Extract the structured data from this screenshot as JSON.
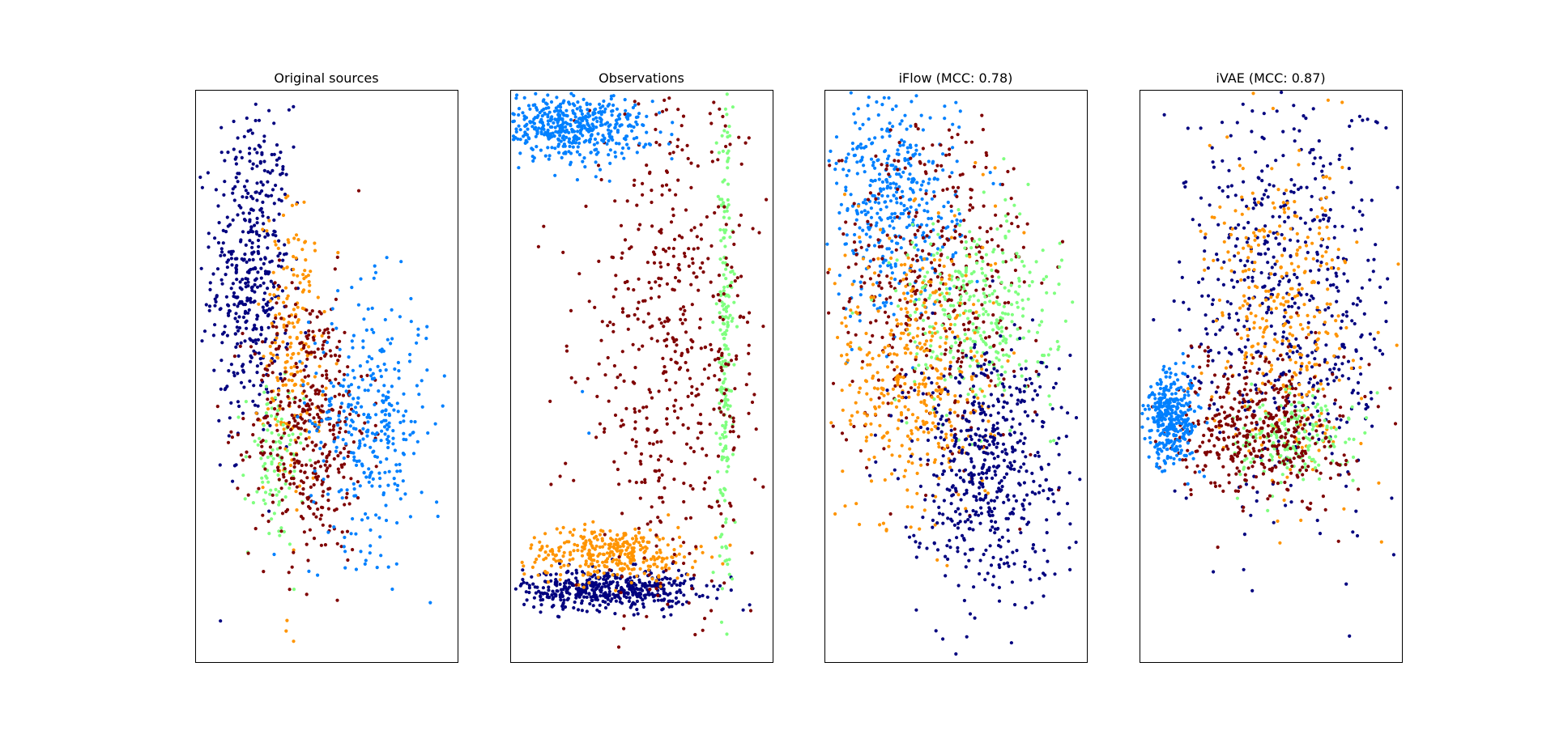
{
  "chart_data": [
    {
      "type": "scatter",
      "title": "Original sources",
      "xlabel": "",
      "ylabel": "",
      "xticks": "hidden",
      "yticks": "hidden",
      "grid": false,
      "legend": "none",
      "xlim": [
        -4,
        4
      ],
      "ylim": [
        -6,
        5
      ],
      "colormap": "jet",
      "series": [
        {
          "color": "#00007f",
          "n": 450,
          "x": [
            -2.3,
            0.6
          ],
          "y": [
            1.5,
            1.6
          ],
          "outliers": [
            [
              -1.75,
              4.6
            ],
            [
              -2.5,
              4.1
            ],
            [
              -3.0,
              3.8
            ],
            [
              -1.0,
              3.9
            ],
            [
              -3.2,
              -0.2
            ]
          ]
        },
        {
          "color": "#ff9400",
          "n": 200,
          "x": [
            -1.0,
            0.45
          ],
          "y": [
            0.0,
            1.4
          ],
          "outliers": [
            [
              -1.0,
              -5.6
            ],
            [
              -1.2,
              -5.2
            ]
          ]
        },
        {
          "color": "#7fff7f",
          "n": 100,
          "x": [
            -1.6,
            0.45
          ],
          "y": [
            -2.2,
            0.8
          ],
          "outliers": []
        },
        {
          "color": "#7f0000",
          "n": 420,
          "x": [
            -0.5,
            0.9
          ],
          "y": [
            -1.4,
            1.3
          ],
          "outliers": [
            [
              -0.6,
              -4.7
            ]
          ]
        },
        {
          "color": "#0080ff",
          "n": 330,
          "x": [
            1.3,
            0.9
          ],
          "y": [
            -1.4,
            1.2
          ],
          "outliers": [
            [
              3.6,
              -0.5
            ],
            [
              3.4,
              -3.2
            ],
            [
              2.8,
              0.4
            ],
            [
              1.4,
              0.8
            ]
          ]
        }
      ]
    },
    {
      "type": "scatter",
      "title": "Observations",
      "xlabel": "",
      "ylabel": "",
      "xticks": "hidden",
      "yticks": "hidden",
      "grid": false,
      "legend": "none",
      "xlim": [
        -4,
        4
      ],
      "ylim": [
        -6,
        5
      ],
      "colormap": "jet",
      "series": [
        {
          "color": "#00007f",
          "n": 480,
          "x": [
            -1.0,
            1.3
          ],
          "y": [
            -4.6,
            0.2
          ],
          "outliers": [
            [
              3.1,
              -5.0
            ],
            [
              3.3,
              -4.9
            ]
          ]
        },
        {
          "color": "#ff9400",
          "n": 330,
          "x": [
            -0.9,
            1.3
          ],
          "y": [
            -3.9,
            0.25
          ],
          "outliers": []
        },
        {
          "color": "#7fff7f",
          "n": 220,
          "x": [
            2.55,
            0.12
          ],
          "y": [
            0.0,
            2.5
          ],
          "outliers": []
        },
        {
          "color": "#7f0000",
          "n": 540,
          "x": [
            1.0,
            1.5
          ],
          "y": [
            0.0,
            2.5
          ],
          "outliers": []
        },
        {
          "color": "#0080ff",
          "n": 500,
          "x": [
            -2.2,
            1.2
          ],
          "y": [
            4.3,
            0.3
          ],
          "outliers": [
            [
              -1.6,
              -1.6
            ],
            [
              -1.8,
              -0.8
            ]
          ]
        }
      ]
    },
    {
      "type": "scatter",
      "title": "iFlow (MCC: 0.78)",
      "xlabel": "",
      "ylabel": "",
      "xticks": "hidden",
      "yticks": "hidden",
      "grid": false,
      "legend": "none",
      "xlim": [
        -4,
        4
      ],
      "ylim": [
        -6,
        5
      ],
      "colormap": "jet",
      "series": [
        {
          "color": "#0080ff",
          "n": 420,
          "x": [
            -1.9,
            1.0
          ],
          "y": [
            2.8,
            1.1
          ],
          "outliers": []
        },
        {
          "color": "#7f0000",
          "n": 430,
          "x": [
            -0.6,
            1.6
          ],
          "y": [
            1.3,
            1.6
          ],
          "outliers": []
        },
        {
          "color": "#7fff7f",
          "n": 330,
          "x": [
            0.6,
            1.2
          ],
          "y": [
            0.7,
            0.9
          ],
          "outliers": []
        },
        {
          "color": "#ff9400",
          "n": 410,
          "x": [
            -1.2,
            1.2
          ],
          "y": [
            -0.5,
            1.5
          ],
          "outliers": [
            [
              0.6,
              3.6
            ],
            [
              1.2,
              3.5
            ]
          ]
        },
        {
          "color": "#00007f",
          "n": 560,
          "x": [
            0.9,
            1.2
          ],
          "y": [
            -2.2,
            1.2
          ],
          "outliers": [
            [
              -0.6,
              -5.4
            ],
            [
              -1.2,
              -5.0
            ]
          ]
        }
      ]
    },
    {
      "type": "scatter",
      "title": "iVAE (MCC: 0.87)",
      "xlabel": "",
      "ylabel": "",
      "xticks": "hidden",
      "yticks": "hidden",
      "grid": false,
      "legend": "none",
      "xlim": [
        -4,
        4
      ],
      "ylim": [
        -6,
        5
      ],
      "colormap": "jet",
      "series": [
        {
          "color": "#00007f",
          "n": 560,
          "x": [
            0.6,
            1.6
          ],
          "y": [
            0.9,
            2.0
          ],
          "outliers": [
            [
              0.7,
              4.7
            ],
            [
              1.0,
              4.5
            ],
            [
              2.4,
              4.3
            ],
            [
              2.5,
              -3.5
            ],
            [
              2.3,
              -4.5
            ],
            [
              2.4,
              -5.5
            ],
            [
              2.6,
              -3.1
            ]
          ]
        },
        {
          "color": "#ff9400",
          "n": 350,
          "x": [
            0.4,
            1.1
          ],
          "y": [
            0.6,
            1.5
          ],
          "outliers": []
        },
        {
          "color": "#7fff7f",
          "n": 180,
          "x": [
            0.7,
            0.9
          ],
          "y": [
            -1.7,
            0.45
          ],
          "outliers": []
        },
        {
          "color": "#7f0000",
          "n": 440,
          "x": [
            -0.4,
            1.3
          ],
          "y": [
            -1.5,
            0.7
          ],
          "outliers": []
        },
        {
          "color": "#0080ff",
          "n": 350,
          "x": [
            -3.0,
            0.4
          ],
          "y": [
            -1.3,
            0.45
          ],
          "outliers": []
        }
      ]
    }
  ]
}
